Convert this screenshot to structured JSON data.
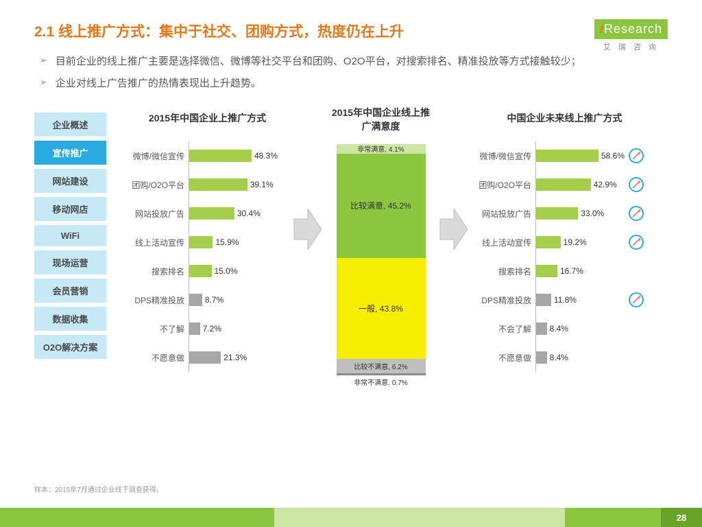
{
  "title": "2.1 线上推广方式：集中于社交、团购方式，热度仍在上升",
  "logo": {
    "brand_i": "i",
    "brand": "Research",
    "sub": "艾 瑞 咨 询"
  },
  "bullets": [
    "目前企业的线上推广主要是选择微信、微博等社交平台和团购、O2O平台，对搜索排名、精准投放等方式接触较少；",
    "企业对线上广告推广的热情表现出上升趋势。"
  ],
  "sidebar": {
    "items": [
      "企业概述",
      "宣传推广",
      "网站建设",
      "移动网店",
      "WiFi",
      "现场运营",
      "会员营销",
      "数据收集",
      "O2O解决方案"
    ],
    "active_index": 1
  },
  "chart1": {
    "title": "2015年中国企业上推广方式",
    "type": "hbar",
    "max": 60,
    "bars": [
      {
        "label": "微博/微信宣传",
        "value": 48.3,
        "color": "#a3cf4b"
      },
      {
        "label": "团购/O2O平台",
        "value": 39.1,
        "color": "#a3cf4b"
      },
      {
        "label": "网站投放广告",
        "value": 30.4,
        "color": "#a3cf4b"
      },
      {
        "label": "线上活动宣传",
        "value": 15.9,
        "color": "#a3cf4b"
      },
      {
        "label": "搜索排名",
        "value": 15.0,
        "color": "#a3cf4b"
      },
      {
        "label": "DPS精准投放",
        "value": 8.7,
        "color": "#a6a6a6"
      },
      {
        "label": "不了解",
        "value": 7.2,
        "color": "#a6a6a6"
      },
      {
        "label": "不愿意做",
        "value": 21.3,
        "color": "#a6a6a6"
      }
    ]
  },
  "chart2": {
    "title": "2015年中国企业线上推广满意度",
    "type": "stacked",
    "segments": [
      {
        "label": "非常满意, 4.1%",
        "pct": 4.1,
        "color": "#cde6a3",
        "tiny": true
      },
      {
        "label": "比较满意, 45.2%",
        "pct": 45.2,
        "color": "#8cc63f"
      },
      {
        "label": "一般, 43.8%",
        "pct": 43.8,
        "color": "#f7ef00"
      },
      {
        "label": "比较不满意, 6.2%",
        "pct": 6.2,
        "color": "#bfbfbf",
        "tiny": true
      },
      {
        "label": "非常不满意, 0.7%",
        "pct": 0.7,
        "color": "#8c8c8c",
        "tiny": true,
        "outside": true
      }
    ]
  },
  "chart3": {
    "title": "中国企业未来线上推广方式",
    "type": "hbar",
    "max": 70,
    "bars": [
      {
        "label": "微博/微信宣传",
        "value": 58.6,
        "color": "#a3cf4b",
        "trend": true
      },
      {
        "label": "团购/O2O平台",
        "value": 42.9,
        "color": "#a3cf4b",
        "trend": true
      },
      {
        "label": "网站投放广告",
        "value": 33.0,
        "color": "#a3cf4b",
        "trend": true
      },
      {
        "label": "线上活动宣传",
        "value": 19.2,
        "color": "#a3cf4b",
        "trend": true
      },
      {
        "label": "搜索排名",
        "value": 16.7,
        "color": "#a3cf4b"
      },
      {
        "label": "DPS精准投放",
        "value": 11.8,
        "color": "#a6a6a6",
        "trend": true
      },
      {
        "label": "不会了解",
        "value": 8.4,
        "color": "#a6a6a6"
      },
      {
        "label": "不愿意做",
        "value": 8.4,
        "color": "#a6a6a6"
      }
    ]
  },
  "footnote": "样本：2015年7月通过企业线下调查获得。",
  "page_number": "28",
  "colors": {
    "accent": "#e67817",
    "green": "#8cc63f",
    "blue": "#29abe2"
  }
}
